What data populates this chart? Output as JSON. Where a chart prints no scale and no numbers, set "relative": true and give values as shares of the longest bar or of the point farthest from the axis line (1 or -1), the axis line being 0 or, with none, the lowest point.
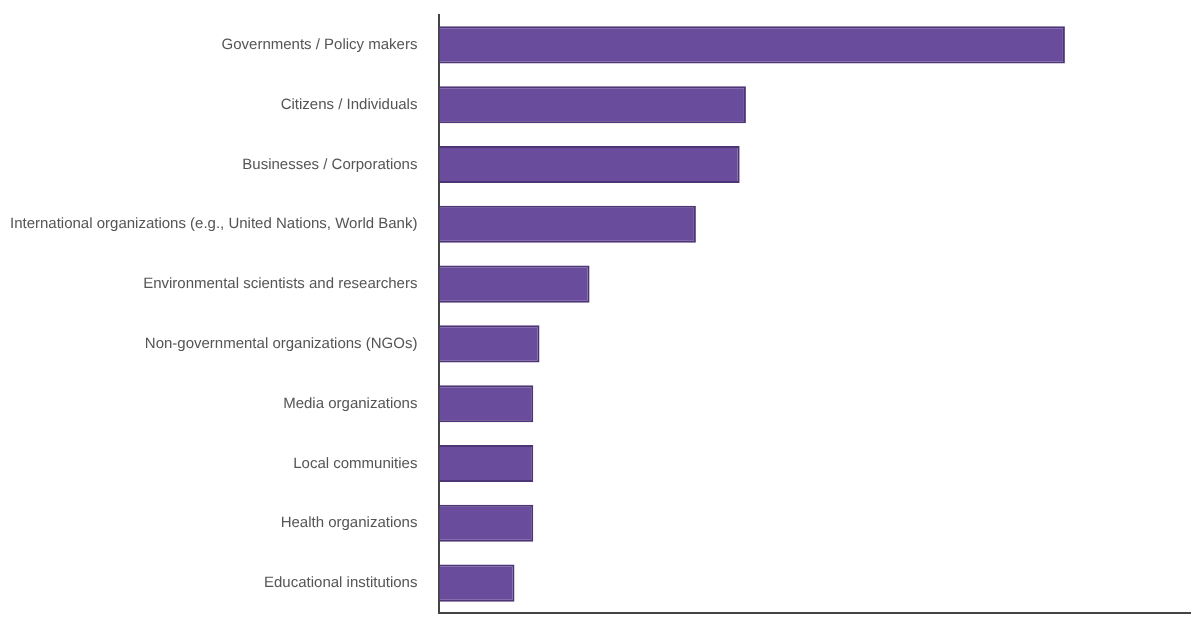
{
  "chart_data": {
    "type": "bar",
    "orientation": "horizontal",
    "relative": true,
    "categories": [
      "Governments / Policy makers",
      "Citizens / Individuals",
      "Businesses / Corporations",
      "International organizations (e.g., United Nations, World Bank)",
      "Environmental scientists and researchers",
      "Non-governmental organizations (NGOs)",
      "Media organizations",
      "Local communities",
      "Health organizations",
      "Educational institutions"
    ],
    "values": [
      1,
      0.49,
      0.48,
      0.41,
      0.24,
      0.16,
      0.15,
      0.15,
      0.15,
      0.12
    ],
    "color": "#6a4c9c"
  }
}
